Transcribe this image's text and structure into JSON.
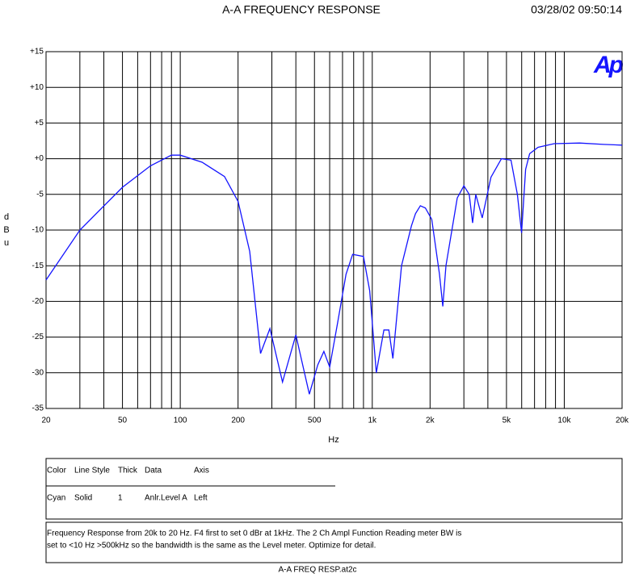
{
  "chart_data": {
    "type": "line",
    "title": "A-A FREQUENCY RESPONSE",
    "timestamp": "03/28/02 09:50:14",
    "logo": "Ap",
    "x_label": "Hz",
    "y_label": "dBu",
    "xscale": "log",
    "grid": true,
    "xlim": [
      20,
      20000
    ],
    "ylim": [
      -35,
      15
    ],
    "xticks": [
      20,
      50,
      100,
      200,
      500,
      {
        "value": 1000,
        "label": "1k"
      },
      {
        "value": 2000,
        "label": "2k"
      },
      {
        "value": 5000,
        "label": "5k"
      },
      {
        "value": 10000,
        "label": "10k"
      },
      {
        "value": 20000,
        "label": "20k"
      }
    ],
    "xminor": [
      30,
      40,
      60,
      70,
      80,
      90,
      300,
      400,
      600,
      700,
      800,
      900,
      3000,
      4000,
      6000,
      7000,
      8000,
      9000
    ],
    "yticks": [
      {
        "value": 15,
        "label": "+15"
      },
      {
        "value": 10,
        "label": "+10"
      },
      {
        "value": 5,
        "label": "+5"
      },
      {
        "value": 0,
        "label": "+0"
      },
      -5,
      -10,
      -15,
      -20,
      -25,
      -30,
      -35
    ],
    "series": [
      {
        "name": "Anlr.Level A",
        "color": "#1414ff",
        "x": [
          20,
          30,
          50,
          70,
          90,
          100,
          130,
          170,
          200,
          230,
          262,
          293,
          341,
          400,
          470,
          520,
          560,
          600,
          660,
          730,
          790,
          900,
          970,
          1050,
          1150,
          1220,
          1280,
          1420,
          1600,
          1680,
          1780,
          1890,
          2040,
          2240,
          2330,
          2420,
          2770,
          3000,
          3200,
          3330,
          3460,
          3740,
          4150,
          4710,
          5280,
          5700,
          5990,
          6290,
          6600,
          7300,
          8850,
          12000,
          16000,
          20000
        ],
        "values": [
          -17,
          -10,
          -4,
          -1,
          0.5,
          0.5,
          -0.5,
          -2.5,
          -6,
          -13,
          -27.3,
          -23.8,
          -31.3,
          -24.7,
          -33,
          -28.9,
          -27,
          -29.2,
          -23,
          -16.2,
          -13.4,
          -13.7,
          -18.5,
          -30,
          -24,
          -24,
          -28,
          -15,
          -9.4,
          -7.7,
          -6.6,
          -6.9,
          -8.5,
          -16.2,
          -20.7,
          -15,
          -5.5,
          -3.8,
          -5,
          -9,
          -5,
          -8.3,
          -2.6,
          0,
          -0.2,
          -5,
          -10.4,
          -1.5,
          0.7,
          1.6,
          2.1,
          2.2,
          2.0,
          1.9
        ]
      }
    ]
  },
  "legend_table": {
    "headers": [
      "Color",
      "Line Style",
      "Thick",
      "Data",
      "Axis"
    ],
    "rows": [
      [
        "Cyan",
        "Solid",
        "1",
        "Anlr.Level A",
        "Left"
      ]
    ]
  },
  "note": [
    "Frequency Response from 20k to 20 Hz.  F4 first to set 0 dBr at 1kHz.  The 2 Ch Ampl Function Reading meter BW is",
    "set to <10 Hz >500kHz so the bandwidth is the same as the Level meter.  Optimize for detail."
  ],
  "footer": "A-A FREQ RESP.at2c"
}
